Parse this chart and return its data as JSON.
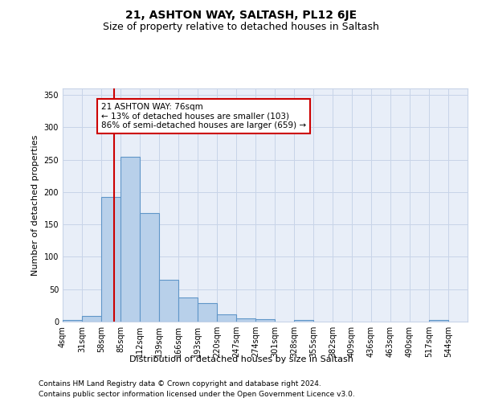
{
  "title": "21, ASHTON WAY, SALTASH, PL12 6JE",
  "subtitle": "Size of property relative to detached houses in Saltash",
  "xlabel": "Distribution of detached houses by size in Saltash",
  "ylabel": "Number of detached properties",
  "footnote1": "Contains HM Land Registry data © Crown copyright and database right 2024.",
  "footnote2": "Contains public sector information licensed under the Open Government Licence v3.0.",
  "bin_edges": [
    4,
    31,
    58,
    85,
    112,
    139,
    166,
    193,
    220,
    247,
    274,
    301,
    328,
    355,
    382,
    409,
    436,
    463,
    490,
    517,
    544
  ],
  "bar_heights": [
    2,
    9,
    192,
    255,
    168,
    65,
    37,
    29,
    11,
    5,
    4,
    0,
    3,
    0,
    0,
    0,
    0,
    0,
    0,
    3,
    0
  ],
  "bar_color": "#b8d0ea",
  "bar_edge_color": "#6096c8",
  "grid_color": "#c8d4e8",
  "background_color": "#e8eef8",
  "vline_x": 76,
  "vline_color": "#cc0000",
  "annotation_text": "21 ASHTON WAY: 76sqm\n← 13% of detached houses are smaller (103)\n86% of semi-detached houses are larger (659) →",
  "annotation_box_facecolor": "white",
  "annotation_box_edgecolor": "#cc0000",
  "ylim": [
    0,
    360
  ],
  "yticks": [
    0,
    50,
    100,
    150,
    200,
    250,
    300,
    350
  ],
  "tick_labels": [
    "4sqm",
    "31sqm",
    "58sqm",
    "85sqm",
    "112sqm",
    "139sqm",
    "166sqm",
    "193sqm",
    "220sqm",
    "247sqm",
    "274sqm",
    "301sqm",
    "328sqm",
    "355sqm",
    "382sqm",
    "409sqm",
    "436sqm",
    "463sqm",
    "490sqm",
    "517sqm",
    "544sqm"
  ],
  "title_fontsize": 10,
  "subtitle_fontsize": 9,
  "axis_label_fontsize": 8,
  "tick_fontsize": 7,
  "annot_fontsize": 7.5,
  "footnote_fontsize": 6.5
}
